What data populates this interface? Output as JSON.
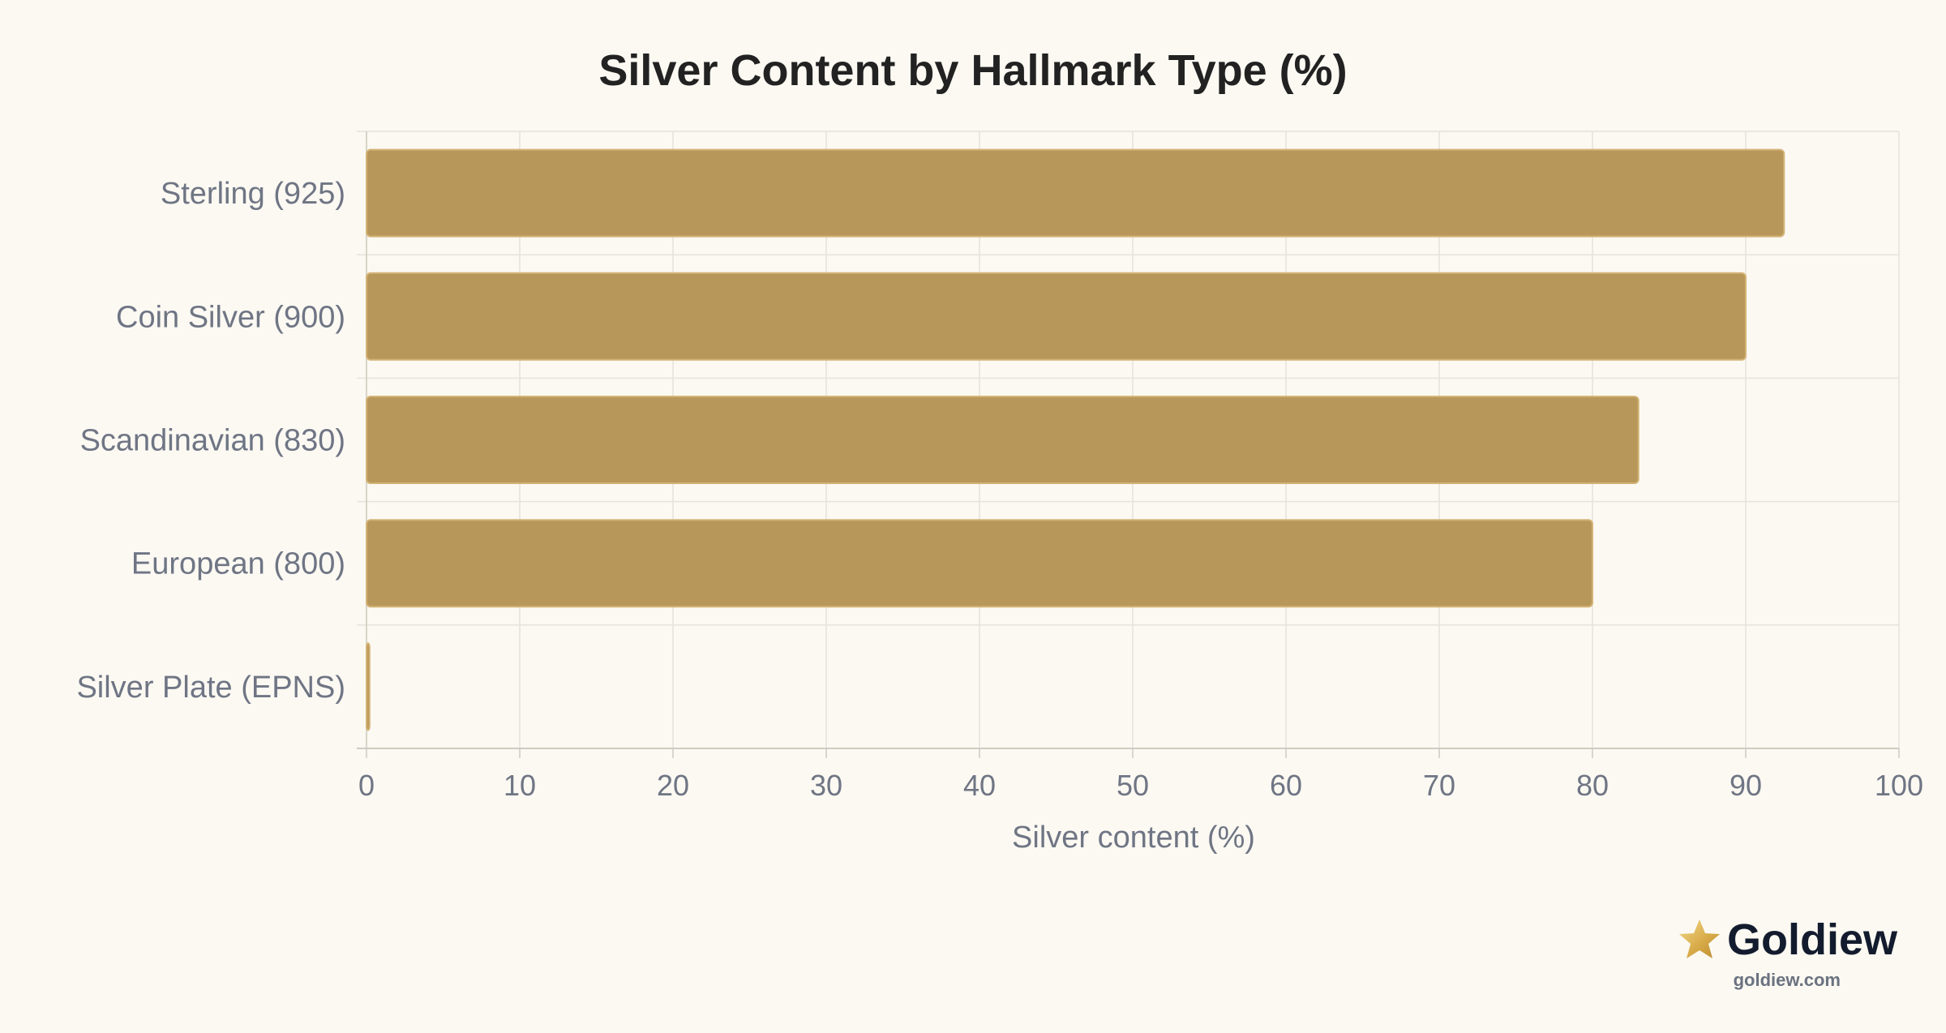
{
  "chart_data": {
    "type": "bar",
    "orientation": "horizontal",
    "title": "Silver Content by Hallmark Type (%)",
    "xlabel": "Silver content (%)",
    "ylabel": "",
    "categories": [
      "Sterling (925)",
      "Coin Silver (900)",
      "Scandinavian (830)",
      "European (800)",
      "Silver Plate (EPNS)"
    ],
    "values": [
      92.5,
      90,
      83,
      80,
      0.2
    ],
    "xlim": [
      0,
      100
    ],
    "xticks": [
      "0",
      "10",
      "20",
      "30",
      "40",
      "50",
      "60",
      "70",
      "80",
      "90",
      "100"
    ],
    "grid": true,
    "legend": "none",
    "colors": {
      "bar_fill": "#b8975b",
      "bar_stroke": "#d4b375",
      "grid": "#e6e3da",
      "axis": "#cfcbc0",
      "label": "#6f7584",
      "title": "#222222",
      "background": "#fbf9f2"
    }
  },
  "branding": {
    "name": "Goldiew",
    "domain": "goldiew.com",
    "icon": "star-icon"
  }
}
